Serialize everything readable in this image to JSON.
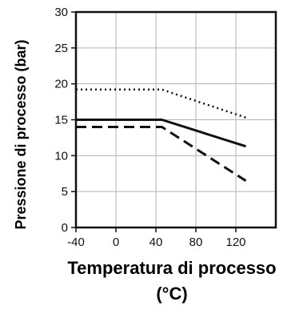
{
  "chart_data": {
    "type": "line",
    "xlabel_line1": "Temperatura di processo",
    "xlabel_line2": "(°C)",
    "ylabel": "Pressione di processo (bar)",
    "xlim": [
      -40,
      160
    ],
    "ylim": [
      0,
      30
    ],
    "x_ticks": [
      -40,
      0,
      40,
      80,
      120
    ],
    "y_ticks": [
      0,
      5,
      10,
      15,
      20,
      25,
      30
    ],
    "x_tick_labels": [
      "-40",
      "0",
      "40",
      "80",
      "120"
    ],
    "y_tick_labels": [
      "0",
      "5",
      "10",
      "15",
      "20",
      "25",
      "30"
    ],
    "grid": true,
    "series": [
      {
        "style": "dotted",
        "color": "#111111",
        "points": [
          [
            -40,
            19.2
          ],
          [
            46,
            19.2
          ],
          [
            130,
            15.3
          ]
        ]
      },
      {
        "style": "solid",
        "color": "#111111",
        "points": [
          [
            -40,
            15.0
          ],
          [
            46,
            15.0
          ],
          [
            130,
            11.3
          ]
        ]
      },
      {
        "style": "dashed",
        "color": "#111111",
        "points": [
          [
            -40,
            14.0
          ],
          [
            46,
            14.0
          ],
          [
            130,
            6.5
          ]
        ]
      }
    ]
  }
}
